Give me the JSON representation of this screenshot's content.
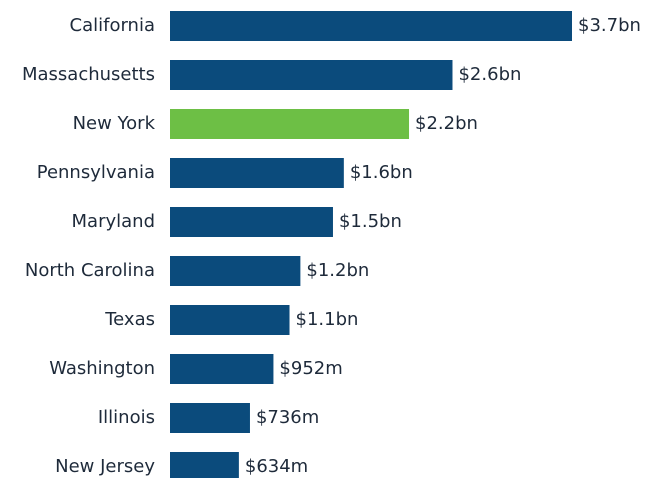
{
  "chart_data": {
    "type": "hbar",
    "categories": [
      "California",
      "Massachusetts",
      "New York",
      "Pennsylvania",
      "Maryland",
      "North Carolina",
      "Texas",
      "Washington",
      "Illinois",
      "New Jersey"
    ],
    "values": [
      3700000000,
      2600000000,
      2200000000,
      1600000000,
      1500000000,
      1200000000,
      1100000000,
      952000000,
      736000000,
      634000000
    ],
    "value_labels": [
      "$3.7bn",
      "$2.6bn",
      "$2.2bn",
      "$1.6bn",
      "$1.5bn",
      "$1.2bn",
      "$1.1bn",
      "$952m",
      "$736m",
      "$634m"
    ],
    "colors": [
      "#0b4b7c",
      "#0b4b7c",
      "#6dbf45",
      "#0b4b7c",
      "#0b4b7c",
      "#0b4b7c",
      "#0b4b7c",
      "#0b4b7c",
      "#0b4b7c",
      "#0b4b7c"
    ]
  }
}
